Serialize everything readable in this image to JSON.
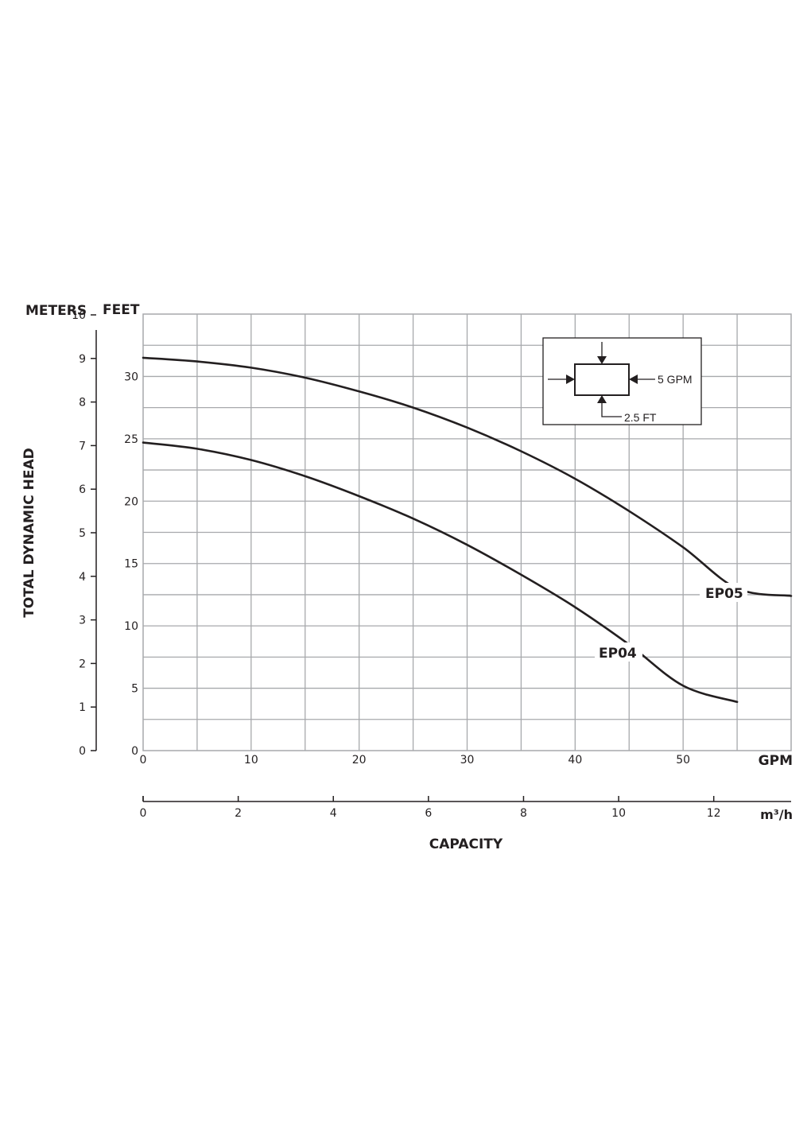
{
  "chart_data": {
    "type": "line",
    "ylabel": "TOTAL DYNAMIC HEAD",
    "xlabel": "CAPACITY",
    "y_left_unit": "METERS",
    "y_right_unit": "FEET",
    "x_primary_unit": "GPM",
    "x_secondary_unit": "m³/h",
    "xlim": [
      0,
      60
    ],
    "ylim_feet": [
      0,
      35
    ],
    "ylim_meters": [
      0,
      10
    ],
    "x_ticks_gpm": [
      "0",
      "10",
      "20",
      "30",
      "40",
      "50"
    ],
    "x_ticks_m3h": [
      "0",
      "2",
      "4",
      "6",
      "8",
      "10",
      "12"
    ],
    "y_ticks_feet": [
      "0",
      "5",
      "10",
      "15",
      "20",
      "25",
      "30"
    ],
    "y_ticks_meters": [
      "0",
      "1",
      "2",
      "3",
      "4",
      "5",
      "6",
      "7",
      "8",
      "9",
      "10"
    ],
    "grid": true,
    "series": [
      {
        "name": "EP05",
        "x": [
          0,
          5,
          10,
          15,
          20,
          25,
          30,
          35,
          40,
          45,
          50,
          55,
          60
        ],
        "y": [
          31.5,
          31.2,
          30.7,
          29.9,
          28.8,
          27.5,
          25.9,
          24.0,
          21.8,
          19.2,
          16.3,
          13.0,
          12.4
        ]
      },
      {
        "name": "EP04",
        "x": [
          0,
          5,
          10,
          15,
          20,
          25,
          30,
          35,
          40,
          45,
          50,
          55
        ],
        "y": [
          24.7,
          24.2,
          23.3,
          22.0,
          20.4,
          18.6,
          16.5,
          14.1,
          11.5,
          8.5,
          5.2,
          3.9
        ]
      }
    ],
    "legend": {
      "flow_label": "5 GPM",
      "head_label": "2.5 FT",
      "placement": "top-right"
    }
  }
}
